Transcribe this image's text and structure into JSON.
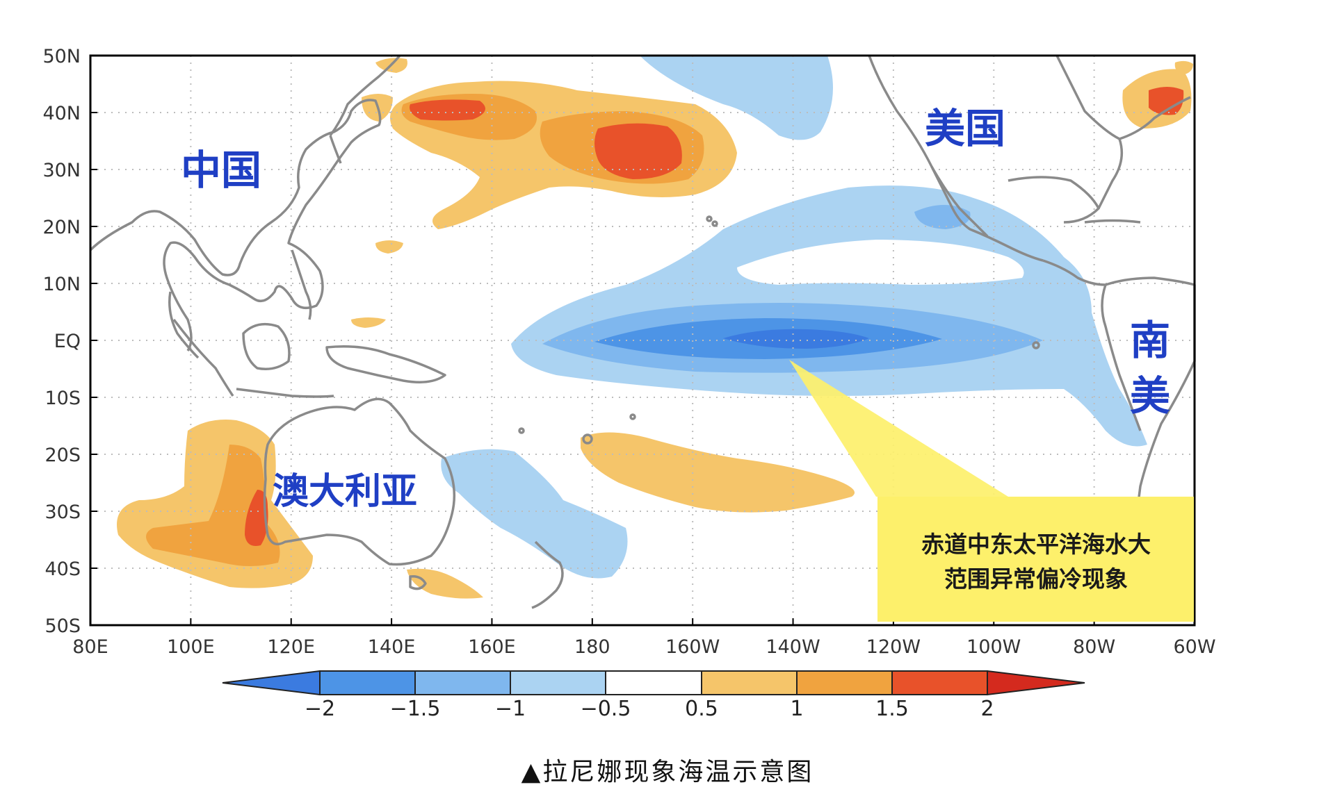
{
  "map": {
    "lat_labels": [
      "50N",
      "40N",
      "30N",
      "20N",
      "10N",
      "EQ",
      "10S",
      "20S",
      "30S",
      "40S",
      "50S"
    ],
    "lon_labels": [
      "80E",
      "100E",
      "120E",
      "140E",
      "160E",
      "180",
      "160W",
      "140W",
      "120W",
      "100W",
      "80W",
      "60W"
    ],
    "region_labels": {
      "china": "中国",
      "usa": "美国",
      "south_america_1": "南",
      "south_america_2": "美",
      "australia": "澳大利亚"
    },
    "callout": {
      "line1": "赤道中东太平洋海水大",
      "line2": "范围异常偏冷现象"
    },
    "colors": {
      "cold_1": "#abd3f2",
      "cold_2": "#7fb7ee",
      "cold_3": "#4d94e6",
      "cold_4": "#3b7be0",
      "warm_1": "#f5c56a",
      "warm_2": "#f0a33f",
      "warm_3": "#e8522a",
      "warm_4": "#d42a1e",
      "callout_fill": "#fdf06b",
      "region_label": "#1f3fc4"
    }
  },
  "colorbar": {
    "ticks": [
      "−2",
      "−1.5",
      "−1",
      "−0.5",
      "0.5",
      "1",
      "1.5",
      "2"
    ]
  },
  "caption": "▲拉尼娜现象海温示意图"
}
